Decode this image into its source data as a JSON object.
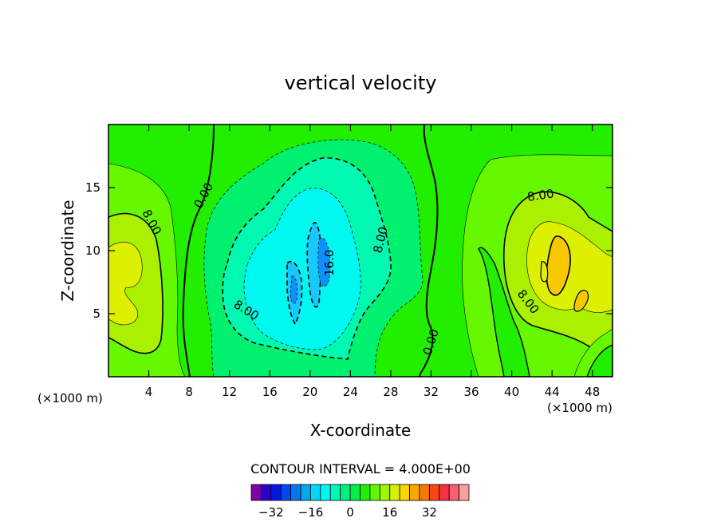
{
  "chart_data": {
    "type": "contour",
    "title": "vertical velocity",
    "xlabel": "X-coordinate",
    "ylabel": "Z-coordinate",
    "x_unit_left": "(×1000 m)",
    "x_unit_right": "(×1000 m)",
    "xlim": [
      0,
      50
    ],
    "ylim": [
      0,
      20
    ],
    "x_ticks": [
      4,
      8,
      12,
      16,
      20,
      24,
      28,
      32,
      36,
      40,
      44,
      48
    ],
    "x_tick_labels": [
      "4",
      "8",
      "12",
      "16",
      "20",
      "24",
      "28",
      "32",
      "36",
      "40",
      "44",
      "48"
    ],
    "y_ticks": [
      5,
      10,
      15
    ],
    "y_tick_labels": [
      "5",
      "10",
      "15"
    ],
    "contour_interval_label": "CONTOUR INTERVAL = 4.000E+00",
    "contour_labels": [
      "0.00",
      "0.00",
      "8.00",
      "8.00",
      "8.00",
      "8.00",
      "8.00",
      "16.0"
    ],
    "colorbar": {
      "ticks": [
        -32,
        -16,
        0,
        16,
        32
      ],
      "tick_labels": [
        "−32",
        "−16",
        "0",
        "16",
        "32"
      ],
      "colors": [
        "#7d00a8",
        "#2a00c8",
        "#0018e0",
        "#0048f0",
        "#0078f0",
        "#00a8f0",
        "#00d8f8",
        "#00f8f0",
        "#00f8b8",
        "#00f080",
        "#00f048",
        "#20f000",
        "#60f800",
        "#a0f800",
        "#d8f000",
        "#f8d800",
        "#f8a800",
        "#f87800",
        "#f84818",
        "#f83040",
        "#f86070",
        "#f8a0a0"
      ]
    },
    "fill_colors": {
      "background": "#22ee00",
      "pos4": "#66f800",
      "pos8": "#aaf000",
      "pos12": "#ddf000",
      "pos16": "#f7c800",
      "neg4": "#00f070",
      "neg8": "#00f8b0",
      "neg12": "#00f8f0",
      "neg16": "#18c8f8",
      "neg20": "#1090f8"
    }
  }
}
